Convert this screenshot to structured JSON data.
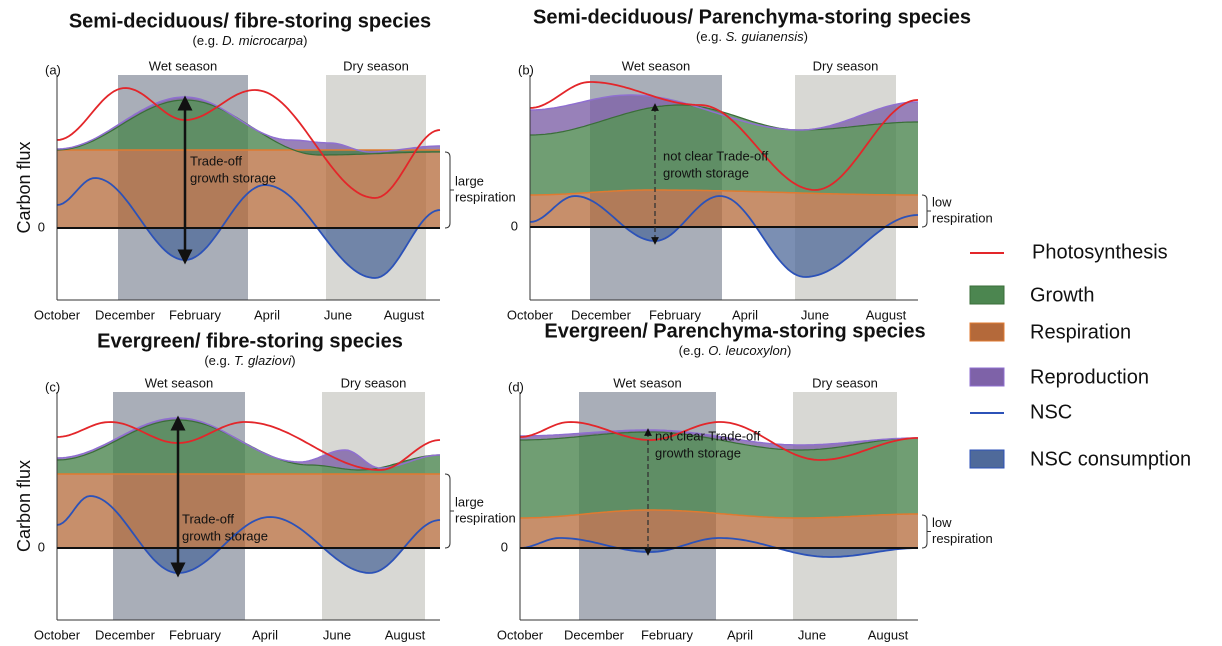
{
  "panels": [
    {
      "label": "(a)",
      "title": "Semi-deciduous/ fibre-storing species",
      "example": [
        "(e.g. ",
        "D. microcarpa",
        ")"
      ],
      "wet": "Wet season",
      "dry": "Dry season",
      "y_label": "Carbon flux",
      "zero": "0",
      "annotation": [
        "Trade-off",
        "growth storage"
      ],
      "side_note": [
        "large",
        "respiration"
      ],
      "months": [
        "October",
        "December",
        "February",
        "April",
        "June",
        "August"
      ]
    },
    {
      "label": "(b)",
      "title": "Semi-deciduous/ Parenchyma-storing species",
      "example": [
        "(e.g. ",
        "S. guianensis",
        ")"
      ],
      "wet": "Wet season",
      "dry": "Dry season",
      "zero": "0",
      "annotation": [
        "not clear Trade-off",
        "growth storage"
      ],
      "side_note": [
        "low",
        "respiration"
      ],
      "months": [
        "October",
        "December",
        "February",
        "April",
        "June",
        "August"
      ]
    },
    {
      "label": "(c)",
      "title": "Evergreen/ fibre-storing species",
      "example": [
        "(e.g. ",
        "T. glaziovi",
        ")"
      ],
      "wet": "Wet season",
      "dry": "Dry season",
      "y_label": "Carbon flux",
      "zero": "0",
      "annotation": [
        "Trade-off",
        "growth storage"
      ],
      "side_note": [
        "large",
        "respiration"
      ],
      "months": [
        "October",
        "December",
        "February",
        "April",
        "June",
        "August"
      ]
    },
    {
      "label": "(d)",
      "title": "Evergreen/ Parenchyma-storing species",
      "example": [
        "(e.g. ",
        "O. leucoxylon",
        ")"
      ],
      "wet": "Wet season",
      "dry": "Dry season",
      "zero": "0",
      "annotation": [
        "not clear Trade-off",
        "growth storage"
      ],
      "side_note": [
        "low",
        "respiration"
      ],
      "months": [
        "October",
        "December",
        "February",
        "April",
        "June",
        "August"
      ]
    }
  ],
  "legend": [
    "Photosynthesis",
    "Growth",
    "Respiration",
    "Reproduction",
    "NSC",
    "NSC consumption"
  ]
}
